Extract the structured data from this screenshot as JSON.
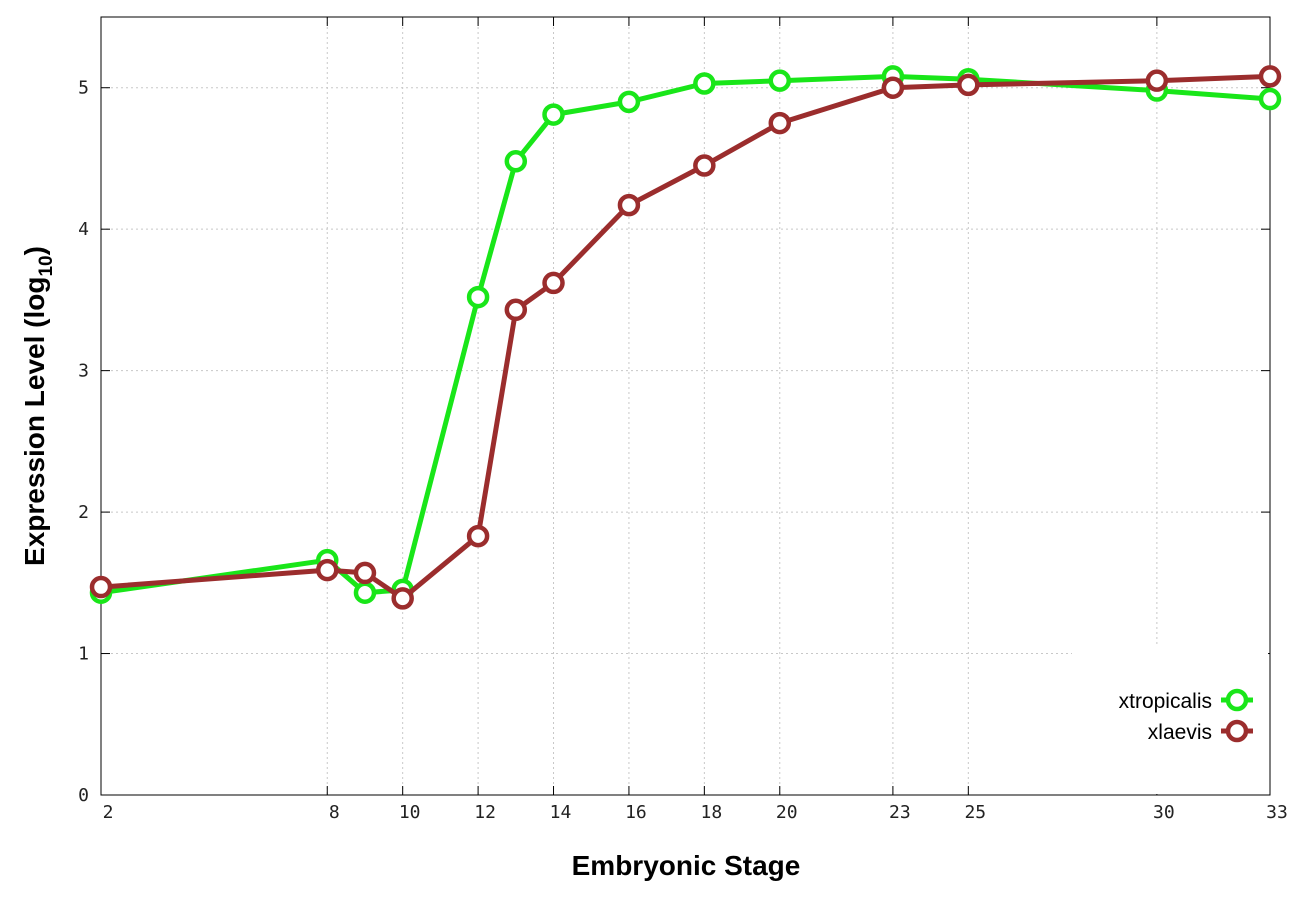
{
  "chart_data": {
    "type": "line",
    "xlabel": "Embryonic Stage",
    "ylabel_main": "Expression Level (log",
    "ylabel_sub": "10",
    "ylabel_close": ")",
    "x": [
      2,
      8,
      9,
      10,
      12,
      13,
      14,
      16,
      18,
      20,
      23,
      25,
      30,
      33
    ],
    "xticks": [
      "2",
      "8",
      "10",
      "12",
      "14",
      "16",
      "18",
      "20",
      "23",
      "25",
      "30",
      "33"
    ],
    "xtick_values": [
      2,
      8,
      10,
      12,
      14,
      16,
      18,
      20,
      23,
      25,
      30,
      33
    ],
    "xlim": [
      2,
      33
    ],
    "ylim": [
      0,
      5.5
    ],
    "yticks": [
      "0",
      "1",
      "2",
      "3",
      "4",
      "5"
    ],
    "ytick_values": [
      0,
      1,
      2,
      3,
      4,
      5
    ],
    "grid": true,
    "legend_position": "bottom-right",
    "series": [
      {
        "name": "xtropicalis",
        "color": "#19e619",
        "values": [
          1.43,
          1.66,
          1.43,
          1.45,
          3.52,
          4.48,
          4.81,
          4.9,
          5.03,
          5.05,
          5.08,
          5.06,
          4.98,
          4.92
        ]
      },
      {
        "name": "xlaevis",
        "color": "#9b2d2d",
        "values": [
          1.47,
          1.59,
          1.57,
          1.39,
          1.83,
          3.43,
          3.62,
          4.17,
          4.45,
          4.75,
          5.0,
          5.02,
          5.05,
          5.08
        ]
      }
    ]
  }
}
